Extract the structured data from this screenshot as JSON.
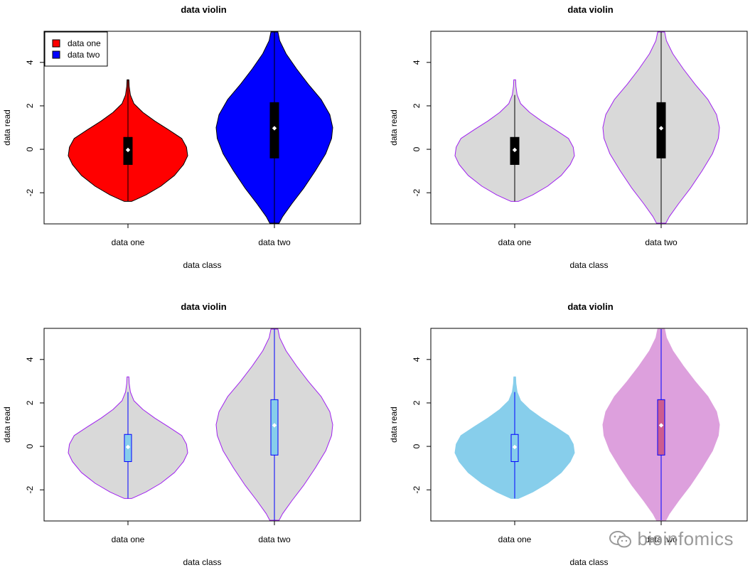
{
  "watermark": "bioinfomics",
  "chart_data": [
    {
      "type": "violin",
      "title": "data violin",
      "xlabel": "data class",
      "ylabel": "data read",
      "categories": [
        "data one",
        "data two"
      ],
      "ylim": [
        -3.4,
        5.4
      ],
      "yticks": [
        -2,
        0,
        2,
        4
      ],
      "fill_colors": [
        "#ff0000",
        "#0000ff"
      ],
      "border_color": "#000000",
      "whisker_color": "#000000",
      "box_fill": "#000000",
      "box_border": "#000000",
      "median_color": "#ffffff",
      "legend": {
        "position": "top-left",
        "entries": [
          "data one",
          "data two"
        ]
      },
      "stats": [
        {
          "min": -2.4,
          "q1": -0.7,
          "median": -0.03,
          "q3": 0.55,
          "max": 3.2,
          "whisker_low": -2.4,
          "whisker_high": 3.2
        },
        {
          "min": -3.4,
          "q1": -0.4,
          "median": 0.97,
          "q3": 2.15,
          "max": 5.4,
          "whisker_low": -3.4,
          "whisker_high": 5.4
        }
      ]
    },
    {
      "type": "violin",
      "title": "data violin",
      "xlabel": "data class",
      "ylabel": "data read",
      "categories": [
        "data one",
        "data two"
      ],
      "ylim": [
        -3.4,
        5.4
      ],
      "yticks": [
        -2,
        0,
        2,
        4
      ],
      "fill_colors": [
        "#d9d9d9",
        "#d9d9d9"
      ],
      "border_color": "#a020f0",
      "whisker_color": "#000000",
      "box_fill": "#000000",
      "box_border": "#000000",
      "median_color": "#ffffff",
      "stats": [
        {
          "min": -2.4,
          "q1": -0.7,
          "median": -0.03,
          "q3": 0.55,
          "max": 3.2,
          "whisker_low": -2.4,
          "whisker_high": 2.5
        },
        {
          "min": -3.4,
          "q1": -0.4,
          "median": 0.97,
          "q3": 2.15,
          "max": 5.4,
          "whisker_low": -3.4,
          "whisker_high": 5.4
        }
      ]
    },
    {
      "type": "violin",
      "title": "data violin",
      "xlabel": "data class",
      "ylabel": "data read",
      "categories": [
        "data one",
        "data two"
      ],
      "ylim": [
        -3.4,
        5.4
      ],
      "yticks": [
        -2,
        0,
        2,
        4
      ],
      "fill_colors": [
        "#d9d9d9",
        "#d9d9d9"
      ],
      "border_color": "#a020f0",
      "whisker_color": "#0000ff",
      "box_fill": "#87ceeb",
      "box_border": "#0000ff",
      "median_color": "#ffffff",
      "stats": [
        {
          "min": -2.4,
          "q1": -0.7,
          "median": -0.03,
          "q3": 0.55,
          "max": 3.2,
          "whisker_low": -2.4,
          "whisker_high": 2.5
        },
        {
          "min": -3.4,
          "q1": -0.4,
          "median": 0.97,
          "q3": 2.15,
          "max": 5.4,
          "whisker_low": -3.4,
          "whisker_high": 5.4
        }
      ]
    },
    {
      "type": "violin",
      "title": "data violin",
      "xlabel": "data class",
      "ylabel": "data read",
      "categories": [
        "data one",
        "data two"
      ],
      "ylim": [
        -3.4,
        5.4
      ],
      "yticks": [
        -2,
        0,
        2,
        4
      ],
      "fill_colors": [
        "#87ceeb",
        "#dda0dd"
      ],
      "border_color": "#87ceeb",
      "border_colors": [
        "#87ceeb",
        "#dda0dd"
      ],
      "whisker_color": "#0000ff",
      "box_fill_colors": [
        "#87ceeb",
        "#cd5c8f"
      ],
      "box_border": "#0000ff",
      "median_color": "#ffffff",
      "stats": [
        {
          "min": -2.4,
          "q1": -0.7,
          "median": -0.03,
          "q3": 0.55,
          "max": 3.2,
          "whisker_low": -2.4,
          "whisker_high": 2.5
        },
        {
          "min": -3.4,
          "q1": -0.4,
          "median": 0.97,
          "q3": 2.15,
          "max": 5.4,
          "whisker_low": -3.4,
          "whisker_high": 5.4
        }
      ]
    }
  ]
}
